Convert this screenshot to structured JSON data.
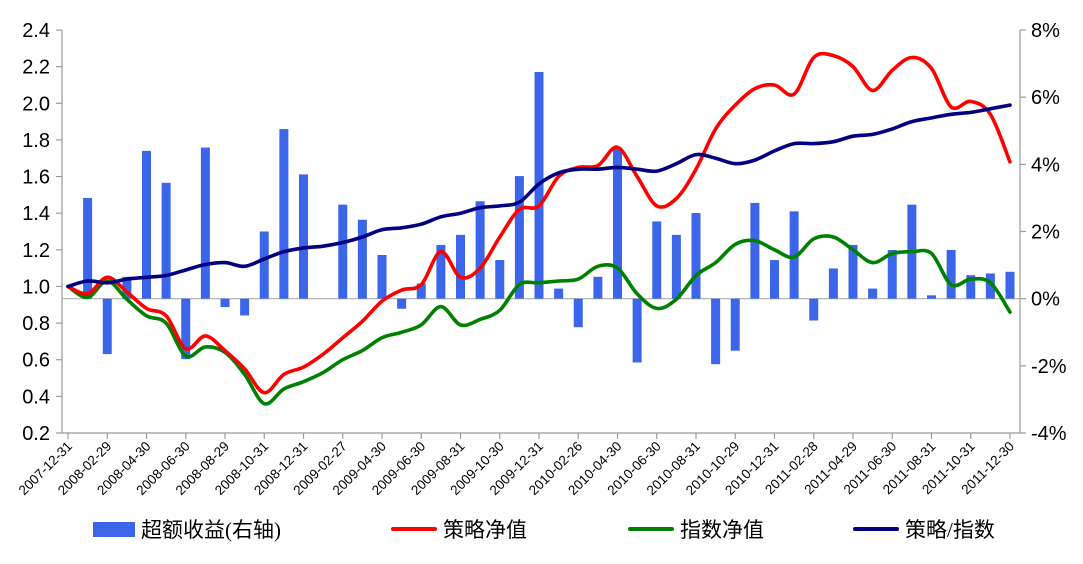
{
  "background": "#ffffff",
  "chart_data": {
    "type": "combo-bar-line",
    "title": "",
    "n_points": 49,
    "x_tick_labels": [
      "2007-12-31",
      "2008-02-29",
      "2008-04-30",
      "2008-06-30",
      "2008-08-29",
      "2008-10-31",
      "2008-12-31",
      "2009-02-27",
      "2009-04-30",
      "2009-06-30",
      "2009-08-31",
      "2009-10-30",
      "2009-12-31",
      "2010-02-26",
      "2010-04-30",
      "2010-06-30",
      "2010-08-31",
      "2010-10-29",
      "2010-12-31",
      "2011-02-28",
      "2011-04-29",
      "2011-06-30",
      "2011-08-31",
      "2011-10-31",
      "2011-12-30"
    ],
    "x_tick_every": 2,
    "left_axis": {
      "min": 0.2,
      "max": 2.4,
      "step": 0.2,
      "tick_labels": [
        "2.4",
        "2.2",
        "2.0",
        "1.8",
        "1.6",
        "1.4",
        "1.2",
        "1.0",
        "0.8",
        "0.6",
        "0.4",
        "0.2"
      ]
    },
    "right_axis": {
      "min": -4,
      "max": 8,
      "step": 2,
      "tick_labels": [
        "8%",
        "6%",
        "4%",
        "2%",
        "0%",
        "-2%",
        "-4%"
      ]
    },
    "grid": "zero-line-only",
    "legend_position": "bottom",
    "series": [
      {
        "name": "超额收益(右轴)",
        "type": "bar",
        "axis": "right",
        "color": "#3B66E9",
        "values": [
          null,
          3.0,
          -1.65,
          0.65,
          4.4,
          3.45,
          -1.8,
          4.5,
          -0.25,
          -0.5,
          2.0,
          5.05,
          3.7,
          null,
          2.8,
          2.35,
          1.3,
          -0.3,
          0.45,
          1.6,
          1.9,
          2.9,
          1.15,
          3.65,
          6.75,
          0.3,
          -0.85,
          0.65,
          4.5,
          -1.9,
          2.3,
          1.9,
          2.55,
          -1.95,
          -1.55,
          2.85,
          1.15,
          2.6,
          -0.65,
          0.9,
          1.6,
          0.3,
          1.45,
          2.8,
          0.1,
          1.45,
          0.7,
          0.75,
          0.8
        ]
      },
      {
        "name": "策略净值",
        "type": "line",
        "axis": "left",
        "color": "#FF0000",
        "values": [
          1.0,
          0.96,
          1.05,
          0.97,
          0.88,
          0.84,
          0.66,
          0.73,
          0.65,
          0.55,
          0.42,
          0.52,
          0.56,
          0.63,
          0.72,
          0.81,
          0.92,
          0.98,
          1.01,
          1.19,
          1.05,
          1.1,
          1.27,
          1.42,
          1.44,
          1.6,
          1.65,
          1.66,
          1.76,
          1.6,
          1.44,
          1.48,
          1.64,
          1.86,
          1.99,
          2.08,
          2.1,
          2.05,
          2.25,
          2.26,
          2.2,
          2.07,
          2.18,
          2.25,
          2.19,
          1.98,
          2.01,
          1.94,
          1.68
        ]
      },
      {
        "name": "指数净值",
        "type": "line",
        "axis": "left",
        "color": "#008000",
        "values": [
          1.0,
          0.94,
          1.03,
          0.93,
          0.84,
          0.8,
          0.62,
          0.67,
          0.64,
          0.52,
          0.36,
          0.44,
          0.48,
          0.53,
          0.6,
          0.65,
          0.72,
          0.75,
          0.79,
          0.89,
          0.79,
          0.82,
          0.87,
          1.01,
          1.02,
          1.03,
          1.04,
          1.11,
          1.1,
          0.96,
          0.88,
          0.93,
          1.06,
          1.13,
          1.23,
          1.25,
          1.2,
          1.16,
          1.26,
          1.27,
          1.2,
          1.13,
          1.18,
          1.19,
          1.18,
          1.01,
          1.04,
          1.02,
          0.86
        ]
      },
      {
        "name": "策略/指数",
        "type": "line",
        "axis": "left",
        "color": "#000080",
        "values": [
          1.0,
          1.03,
          1.02,
          1.04,
          1.05,
          1.06,
          1.09,
          1.12,
          1.13,
          1.11,
          1.15,
          1.19,
          1.21,
          1.22,
          1.24,
          1.27,
          1.31,
          1.32,
          1.34,
          1.38,
          1.4,
          1.43,
          1.44,
          1.46,
          1.56,
          1.62,
          1.64,
          1.64,
          1.65,
          1.64,
          1.63,
          1.67,
          1.72,
          1.7,
          1.67,
          1.69,
          1.74,
          1.78,
          1.78,
          1.79,
          1.82,
          1.83,
          1.86,
          1.9,
          1.92,
          1.94,
          1.95,
          1.97,
          1.99
        ]
      }
    ]
  },
  "legend": {
    "items": [
      {
        "label": "超额收益(右轴)",
        "color": "#3B66E9",
        "swatch": "rect"
      },
      {
        "label": "策略净值",
        "color": "#FF0000",
        "swatch": "line"
      },
      {
        "label": "指数净值",
        "color": "#008000",
        "swatch": "line"
      },
      {
        "label": "策略/指数",
        "color": "#000080",
        "swatch": "line"
      }
    ]
  },
  "style": {
    "axis_color": "#9B9B9B",
    "zero_line_color": "#ADADAD",
    "text_color": "#000000"
  }
}
